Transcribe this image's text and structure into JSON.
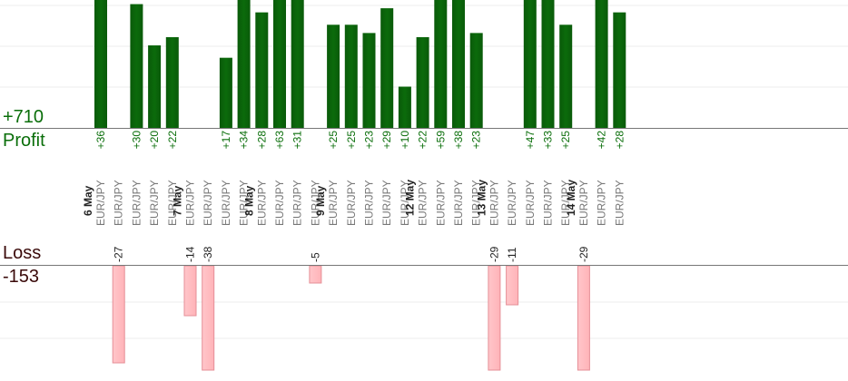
{
  "summary": {
    "profit_total": "+710",
    "profit_label": "Profit",
    "loss_label": "Loss",
    "loss_total": "-153"
  },
  "colors": {
    "profit_bar": "#0b6b0b",
    "profit_text": "#0a6e0a",
    "loss_bar": "#ffb3b8",
    "loss_border": "#e58f97",
    "loss_text": "#222222",
    "date_text": "#222222",
    "pair_text": "#777777"
  },
  "chart_data": {
    "type": "bar",
    "profit_ylim": [
      0,
      31
    ],
    "loss_ylim": [
      0,
      29
    ],
    "slots": [
      {
        "date": "6 May",
        "pair": "EUR/JPY",
        "profit": 36,
        "loss": null
      },
      {
        "date": "",
        "pair": "EUR/JPY",
        "profit": null,
        "loss": -27
      },
      {
        "date": "",
        "pair": "EUR/JPY",
        "profit": 30,
        "loss": null
      },
      {
        "date": "",
        "pair": "EUR/JPY",
        "profit": 20,
        "loss": null
      },
      {
        "date": "",
        "pair": "EUR/JPY",
        "profit": 22,
        "loss": null
      },
      {
        "date": "7 May",
        "pair": "EUR/JPY",
        "profit": null,
        "loss": -14
      },
      {
        "date": "",
        "pair": "EUR/JPY",
        "profit": null,
        "loss": -38
      },
      {
        "date": "",
        "pair": "EUR/JPY",
        "profit": 17,
        "loss": null
      },
      {
        "date": "",
        "pair": "EUR/JPY",
        "profit": 34,
        "loss": null
      },
      {
        "date": "8 May",
        "pair": "EUR/JPY",
        "profit": 28,
        "loss": null
      },
      {
        "date": "",
        "pair": "EUR/JPY",
        "profit": 63,
        "loss": null
      },
      {
        "date": "",
        "pair": "EUR/JPY",
        "profit": 31,
        "loss": null
      },
      {
        "date": "",
        "pair": "EUR/JPY",
        "profit": null,
        "loss": -5
      },
      {
        "date": "9 May",
        "pair": "EUR/JPY",
        "profit": 25,
        "loss": null
      },
      {
        "date": "",
        "pair": "EUR/JPY",
        "profit": 25,
        "loss": null
      },
      {
        "date": "",
        "pair": "EUR/JPY",
        "profit": 23,
        "loss": null
      },
      {
        "date": "",
        "pair": "EUR/JPY",
        "profit": 29,
        "loss": null
      },
      {
        "date": "",
        "pair": "EUR/JPY",
        "profit": 10,
        "loss": null
      },
      {
        "date": "12 May",
        "pair": "EUR/JPY",
        "profit": 22,
        "loss": null
      },
      {
        "date": "",
        "pair": "EUR/JPY",
        "profit": 59,
        "loss": null
      },
      {
        "date": "",
        "pair": "EUR/JPY",
        "profit": 38,
        "loss": null
      },
      {
        "date": "",
        "pair": "EUR/JPY",
        "profit": 23,
        "loss": null
      },
      {
        "date": "13 May",
        "pair": "EUR/JPY",
        "profit": null,
        "loss": -29
      },
      {
        "date": "",
        "pair": "EUR/JPY",
        "profit": null,
        "loss": -11
      },
      {
        "date": "",
        "pair": "EUR/JPY",
        "profit": 47,
        "loss": null
      },
      {
        "date": "",
        "pair": "EUR/JPY",
        "profit": 33,
        "loss": null
      },
      {
        "date": "",
        "pair": "EUR/JPY",
        "profit": 25,
        "loss": null
      },
      {
        "date": "14 May",
        "pair": "EUR/JPY",
        "profit": null,
        "loss": -29
      },
      {
        "date": "",
        "pair": "EUR/JPY",
        "profit": 42,
        "loss": null
      },
      {
        "date": "",
        "pair": "EUR/JPY",
        "profit": 28,
        "loss": null
      }
    ]
  }
}
